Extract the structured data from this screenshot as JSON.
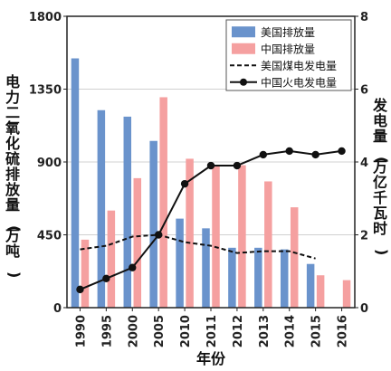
{
  "chart_data": {
    "type": "bar",
    "categories": [
      "1990",
      "1995",
      "2000",
      "2005",
      "2010",
      "2011",
      "2012",
      "2013",
      "2014",
      "2015",
      "2016"
    ],
    "xlabel": "年份",
    "ylabel_left": "电力二氧化硫排放量(万吨)",
    "ylabel_right": "发电量(万亿千瓦时)",
    "ylim_left": [
      0,
      1800
    ],
    "yticks_left": [
      "0",
      "450",
      "900",
      "1350",
      "1800"
    ],
    "ylim_right": [
      0,
      8
    ],
    "yticks_right": [
      "0",
      "2",
      "4",
      "6",
      "8"
    ],
    "legend_position": "top-right",
    "bar_series": [
      {
        "name": "美国排放量",
        "color": "#6a93cc",
        "values": [
          1540,
          1220,
          1180,
          1030,
          550,
          490,
          370,
          370,
          360,
          270,
          null
        ]
      },
      {
        "name": "中国排放量",
        "color": "#f5a0a0",
        "values": [
          420,
          600,
          800,
          1300,
          920,
          880,
          880,
          780,
          620,
          200,
          170
        ]
      }
    ],
    "line_series": [
      {
        "name": "美国煤电发电量",
        "style": "dashed",
        "color": "#111111",
        "values": [
          1.6,
          1.7,
          1.95,
          2.0,
          1.8,
          1.7,
          1.5,
          1.55,
          1.55,
          1.35,
          null
        ]
      },
      {
        "name": "中国火电发电量",
        "style": "solid-marker",
        "color": "#111111",
        "values": [
          0.5,
          0.8,
          1.1,
          2.0,
          3.4,
          3.9,
          3.9,
          4.2,
          4.3,
          4.2,
          4.3
        ]
      }
    ]
  }
}
